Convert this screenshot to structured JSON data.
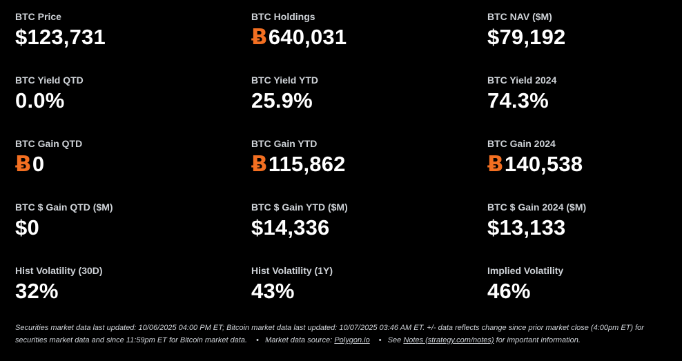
{
  "colors": {
    "background": "#000000",
    "label": "#cfd3d8",
    "value": "#ffffff",
    "bitcoin_accent": "#f36f21"
  },
  "icons": {
    "bitcoin": "bitcoin-icon",
    "bitcoin_glyph": "Ƀ"
  },
  "stats": {
    "btc_price": {
      "label": "BTC Price",
      "value": "$123,731"
    },
    "btc_holdings": {
      "label": "BTC Holdings",
      "value": "640,031"
    },
    "btc_nav": {
      "label": "BTC NAV ($M)",
      "value": "$79,192"
    },
    "btc_yield_qtd": {
      "label": "BTC Yield QTD",
      "value": "0.0%"
    },
    "btc_yield_ytd": {
      "label": "BTC Yield YTD",
      "value": "25.9%"
    },
    "btc_yield_2024": {
      "label": "BTC Yield 2024",
      "value": "74.3%"
    },
    "btc_gain_qtd": {
      "label": "BTC Gain QTD",
      "value": "0"
    },
    "btc_gain_ytd": {
      "label": "BTC Gain YTD",
      "value": "115,862"
    },
    "btc_gain_2024": {
      "label": "BTC Gain 2024",
      "value": "140,538"
    },
    "btc_usd_gain_qtd": {
      "label": "BTC $ Gain QTD ($M)",
      "value": "$0"
    },
    "btc_usd_gain_ytd": {
      "label": "BTC $ Gain YTD ($M)",
      "value": "$14,336"
    },
    "btc_usd_gain_2024": {
      "label": "BTC $ Gain 2024 ($M)",
      "value": "$13,133"
    },
    "hist_vol_30d": {
      "label": "Hist Volatility (30D)",
      "value": "32%"
    },
    "hist_vol_1y": {
      "label": "Hist Volatility (1Y)",
      "value": "43%"
    },
    "implied_vol": {
      "label": "Implied Volatility",
      "value": "46%"
    }
  },
  "footer": {
    "updated_text": "Securities market data last updated: 10/06/2025 04:00 PM ET; Bitcoin market data last updated: 10/07/2025 03:46 AM ET. +/- data reflects change since prior market close (4:00pm ET) for securities market data and since 11:59pm ET for Bitcoin market data.",
    "bullet": "•",
    "source_prefix": "Market data source: ",
    "source_link": "Polygon.io",
    "notes_prefix": "See ",
    "notes_link": "Notes (strategy.com/notes)",
    "notes_suffix": " for important information."
  }
}
